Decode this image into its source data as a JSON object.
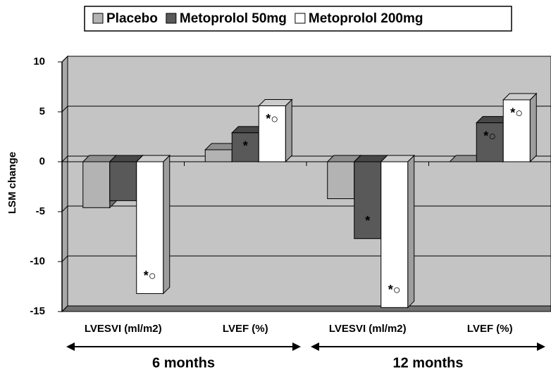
{
  "chart_data": {
    "type": "bar3d",
    "categories": [
      "LVESVI (ml/m2)",
      "LVEF (%)",
      "LVESVI (ml/m2)",
      "LVEF (%)"
    ],
    "group_labels": [
      "6 months",
      "12 months"
    ],
    "y_axis_label": "LSM change",
    "ylim": [
      -15,
      10
    ],
    "yticks": [
      -15,
      -10,
      -5,
      0,
      5,
      10
    ],
    "grid": true,
    "legend": "top",
    "series": [
      {
        "name": "Placebo",
        "color": "#b3b3b3",
        "values": [
          -4.6,
          1.2,
          -3.7,
          0
        ],
        "annotations": [
          null,
          null,
          null,
          null
        ]
      },
      {
        "name": "Metoprolol 50mg",
        "color": "#595959",
        "values": [
          -3.9,
          2.9,
          -7.7,
          3.9
        ],
        "annotations": [
          null,
          "*",
          "*",
          "*○"
        ]
      },
      {
        "name": "Metoprolol 200mg",
        "color": "#ffffff",
        "values": [
          -13.2,
          5.6,
          -14.6,
          6.2
        ],
        "annotations": [
          "*○",
          "*○",
          "*○",
          "*○"
        ]
      }
    ]
  }
}
